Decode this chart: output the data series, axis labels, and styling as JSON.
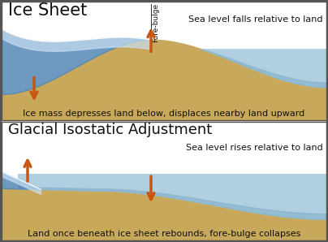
{
  "bg_color": "#ffffff",
  "border_color": "#555555",
  "land_color": "#c8a85a",
  "sea_color": "#b0cfe0",
  "sea_color_dark": "#7aaac8",
  "ice_color_light": "#c8dff0",
  "ice_color_dark": "#5588b8",
  "arrow_color": "#c85510",
  "text_color": "#111111",
  "panel1_title": "Ice Sheet",
  "panel1_caption": "Ice mass depresses land below, displaces nearby land upward",
  "panel1_sea_label": "Sea level falls relative to land",
  "panel1_forebulge_label": "Fore-bulge",
  "panel2_title": "Glacial Isostatic Adjustment",
  "panel2_caption": "Land once beneath ice sheet rebounds, fore-bulge collapses",
  "panel2_sea_label": "Sea level rises relative to land",
  "title1_fontsize": 15,
  "title2_fontsize": 13,
  "caption_fontsize": 8,
  "sea_label_fontsize": 8,
  "forebulge_fontsize": 6.5
}
